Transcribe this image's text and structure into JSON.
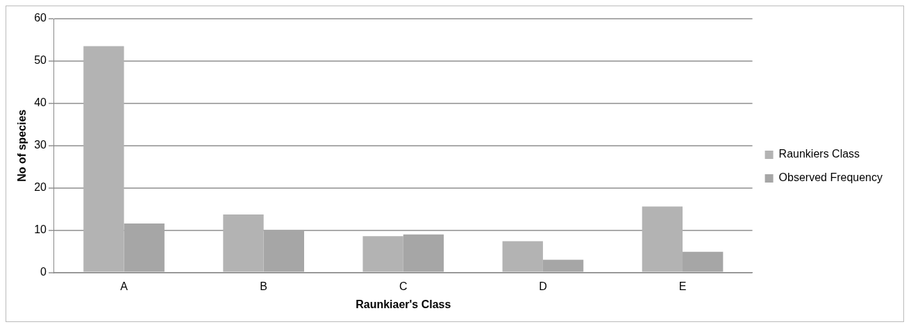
{
  "chart_data": {
    "type": "bar",
    "xlabel": "Raunkiaer's Class",
    "ylabel": "No of species",
    "categories": [
      "A",
      "B",
      "C",
      "D",
      "E"
    ],
    "series": [
      {
        "name": "Raunkiers Class",
        "color": "#b3b3b3",
        "values": [
          53.5,
          13.7,
          8.6,
          7.4,
          15.6
        ]
      },
      {
        "name": "Observed Frequency",
        "color": "#a6a6a6",
        "values": [
          11.6,
          9.9,
          9,
          3,
          4.9
        ]
      }
    ],
    "ylim": [
      0,
      60
    ],
    "yticks": [
      0,
      10,
      20,
      30,
      40,
      50,
      60
    ],
    "grid": "y",
    "legend": "right"
  }
}
